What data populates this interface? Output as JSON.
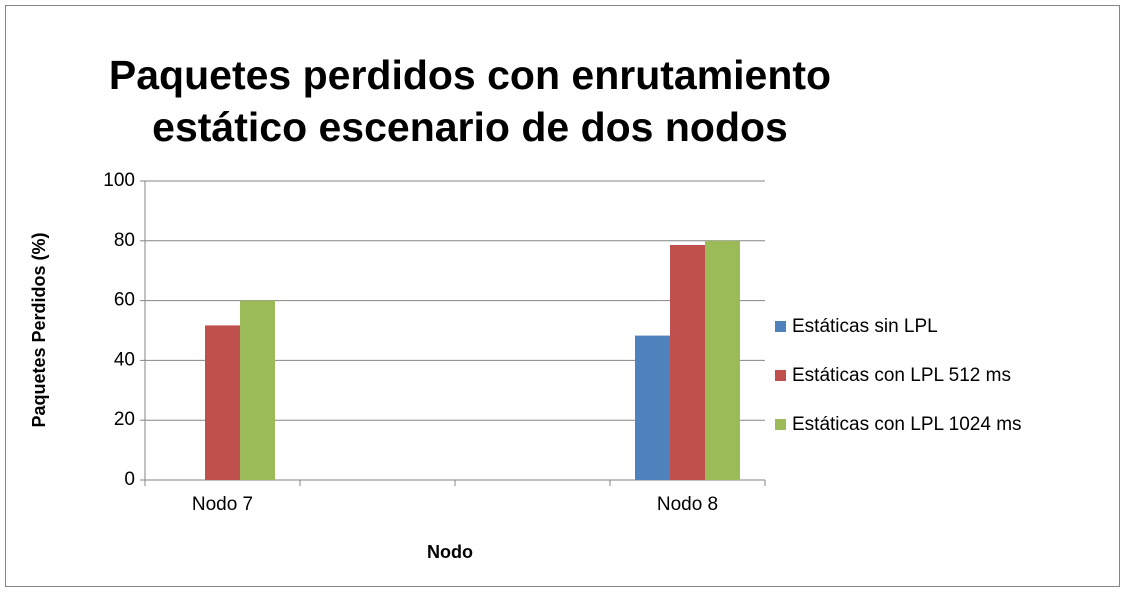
{
  "chart_data": {
    "type": "bar",
    "title": "Paquetes perdidos con enrutamiento estático escenario de dos nodos",
    "x_label": "Nodo",
    "y_label": "Paquetes Perdidos (%)",
    "categories": [
      "Nodo 7",
      null,
      null,
      "Nodo 8"
    ],
    "series": [
      {
        "name": "Estáticas sin LPL",
        "color": "#4f81bd",
        "values": [
          null,
          null,
          null,
          48.3
        ]
      },
      {
        "name": "Estáticas con LPL 512 ms",
        "color": "#c0504d",
        "values": [
          51.7,
          null,
          null,
          78.6
        ]
      },
      {
        "name": "Estáticas con LPL 1024 ms",
        "color": "#9bbb59",
        "values": [
          60,
          null,
          null,
          80
        ]
      }
    ],
    "ylim": [
      0,
      100
    ],
    "yticks": [
      0,
      20,
      40,
      60,
      80,
      100
    ],
    "grid": true,
    "legend": "right"
  }
}
